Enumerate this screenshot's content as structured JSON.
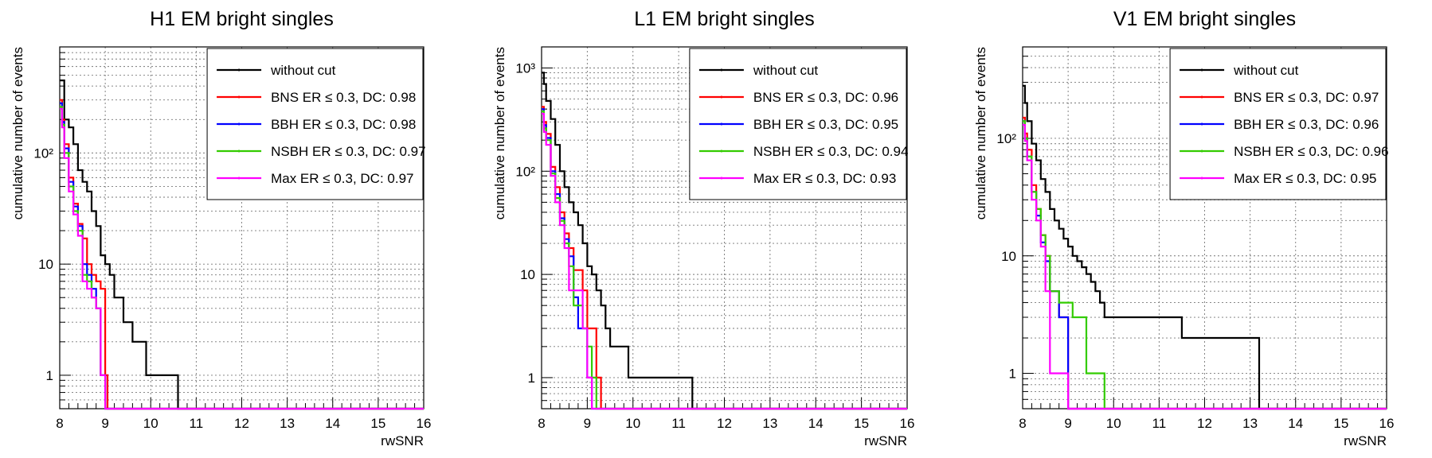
{
  "chart_data": [
    {
      "type": "line",
      "title": "H1 EM bright singles",
      "xlabel": "rwSNR",
      "ylabel": "cumulative number of events",
      "xlim": [
        8,
        16
      ],
      "ylim": [
        0.5,
        900
      ],
      "log_y": true,
      "grid": true,
      "legend_placement": "top-right",
      "x_ticks": [
        "8",
        "9",
        "10",
        "11",
        "12",
        "13",
        "14",
        "15",
        "16"
      ],
      "y_ticks": [
        {
          "value": 1,
          "label": "1"
        },
        {
          "value": 10,
          "label": "10"
        },
        {
          "value": 100,
          "label": "10²"
        }
      ],
      "series": [
        {
          "name": "without cut",
          "color": "#000000",
          "x": [
            8.0,
            8.1,
            8.2,
            8.3,
            8.4,
            8.5,
            8.6,
            8.7,
            8.8,
            8.9,
            9.0,
            9.1,
            9.2,
            9.4,
            9.6,
            9.9,
            10.6
          ],
          "y": [
            450,
            200,
            170,
            120,
            70,
            55,
            45,
            30,
            22,
            12,
            10,
            8,
            5,
            3,
            2,
            1,
            0.5
          ]
        },
        {
          "name": "BNS ER ≤ 0.3, DC: 0.98",
          "color": "#ff0000",
          "x": [
            8.0,
            8.05,
            8.1,
            8.2,
            8.3,
            8.4,
            8.5,
            8.6,
            8.7,
            8.8,
            8.9,
            9.0,
            9.05
          ],
          "y": [
            300,
            200,
            120,
            60,
            35,
            23,
            17,
            10,
            8,
            7,
            6,
            1,
            0.5
          ]
        },
        {
          "name": "BBH ER ≤ 0.3, DC: 0.98",
          "color": "#0000ff",
          "x": [
            8.0,
            8.05,
            8.1,
            8.2,
            8.3,
            8.4,
            8.5,
            8.6,
            8.7,
            8.8,
            8.9,
            9.0
          ],
          "y": [
            280,
            190,
            110,
            55,
            33,
            22,
            10,
            8,
            6,
            4,
            1,
            0.5
          ]
        },
        {
          "name": "NSBH ER ≤ 0.3, DC: 0.97",
          "color": "#33cc00",
          "x": [
            8.0,
            8.05,
            8.1,
            8.2,
            8.3,
            8.4,
            8.5,
            8.6,
            8.7,
            8.8,
            8.9,
            9.0
          ],
          "y": [
            260,
            180,
            100,
            50,
            30,
            20,
            8,
            7,
            5,
            4,
            1,
            0.5
          ]
        },
        {
          "name": "Max ER ≤ 0.3, DC: 0.97",
          "color": "#ff00ff",
          "x": [
            8.0,
            8.05,
            8.1,
            8.2,
            8.3,
            8.4,
            8.5,
            8.6,
            8.7,
            8.8,
            8.9,
            9.0
          ],
          "y": [
            250,
            170,
            90,
            45,
            28,
            18,
            7,
            6,
            5,
            4,
            1,
            0.5
          ]
        }
      ]
    },
    {
      "type": "line",
      "title": "L1 EM bright singles",
      "xlabel": "rwSNR",
      "ylabel": "cumulative number of events",
      "xlim": [
        8,
        16
      ],
      "ylim": [
        0.5,
        1600
      ],
      "log_y": true,
      "grid": true,
      "legend_placement": "top-right",
      "x_ticks": [
        "8",
        "9",
        "10",
        "11",
        "12",
        "13",
        "14",
        "15",
        "16"
      ],
      "y_ticks": [
        {
          "value": 1,
          "label": "1"
        },
        {
          "value": 10,
          "label": "10"
        },
        {
          "value": 100,
          "label": "10²"
        },
        {
          "value": 1000,
          "label": "10³"
        }
      ],
      "series": [
        {
          "name": "without cut",
          "color": "#000000",
          "x": [
            8.0,
            8.05,
            8.1,
            8.2,
            8.3,
            8.4,
            8.5,
            8.6,
            8.7,
            8.8,
            8.9,
            9.0,
            9.1,
            9.2,
            9.3,
            9.4,
            9.5,
            9.9,
            11.3
          ],
          "y": [
            900,
            700,
            480,
            320,
            180,
            100,
            70,
            50,
            40,
            30,
            20,
            12,
            10,
            7,
            5,
            3,
            2,
            1,
            0.5
          ]
        },
        {
          "name": "BNS ER ≤ 0.3, DC: 0.96",
          "color": "#ff0000",
          "x": [
            8.0,
            8.05,
            8.1,
            8.2,
            8.3,
            8.4,
            8.5,
            8.6,
            8.7,
            8.9,
            9.0,
            9.2,
            9.3
          ],
          "y": [
            420,
            300,
            230,
            110,
            70,
            40,
            25,
            18,
            11,
            7,
            3,
            1,
            0.5
          ]
        },
        {
          "name": "BBH ER ≤ 0.3, DC: 0.95",
          "color": "#0000ff",
          "x": [
            8.0,
            8.05,
            8.1,
            8.2,
            8.3,
            8.4,
            8.5,
            8.6,
            8.7,
            8.8,
            9.0,
            9.1
          ],
          "y": [
            400,
            280,
            210,
            100,
            60,
            35,
            22,
            15,
            6,
            3,
            1,
            0.5
          ]
        },
        {
          "name": "NSBH ER ≤ 0.3, DC: 0.94",
          "color": "#33cc00",
          "x": [
            8.0,
            8.05,
            8.1,
            8.2,
            8.3,
            8.4,
            8.5,
            8.6,
            8.7,
            8.9,
            9.0,
            9.1,
            9.2
          ],
          "y": [
            380,
            260,
            200,
            95,
            55,
            33,
            20,
            12,
            5,
            3,
            2,
            1,
            0.5
          ]
        },
        {
          "name": "Max ER ≤ 0.3, DC: 0.93",
          "color": "#ff00ff",
          "x": [
            8.0,
            8.05,
            8.1,
            8.2,
            8.3,
            8.4,
            8.5,
            8.6,
            8.9,
            9.0,
            9.1
          ],
          "y": [
            360,
            240,
            180,
            90,
            50,
            30,
            18,
            7,
            3,
            1,
            0.5
          ]
        }
      ]
    },
    {
      "type": "line",
      "title": "V1 EM bright singles",
      "xlabel": "rwSNR",
      "ylabel": "cumulative number of events",
      "xlim": [
        8,
        16
      ],
      "ylim": [
        0.5,
        600
      ],
      "log_y": true,
      "grid": true,
      "legend_placement": "top-right",
      "x_ticks": [
        "8",
        "9",
        "10",
        "11",
        "12",
        "13",
        "14",
        "15",
        "16"
      ],
      "y_ticks": [
        {
          "value": 1,
          "label": "1"
        },
        {
          "value": 10,
          "label": "10"
        },
        {
          "value": 100,
          "label": "10²"
        }
      ],
      "series": [
        {
          "name": "without cut",
          "color": "#000000",
          "x": [
            8.0,
            8.05,
            8.1,
            8.2,
            8.3,
            8.4,
            8.5,
            8.6,
            8.7,
            8.8,
            8.9,
            9.0,
            9.1,
            9.2,
            9.3,
            9.4,
            9.5,
            9.6,
            9.7,
            9.8,
            10.0,
            11.5,
            13.2
          ],
          "y": [
            280,
            200,
            140,
            90,
            65,
            45,
            35,
            25,
            20,
            17,
            14,
            12,
            10,
            9,
            8,
            7,
            6,
            5,
            4,
            3,
            3,
            2,
            0.5
          ]
        },
        {
          "name": "BNS ER ≤ 0.3, DC: 0.97",
          "color": "#ff0000",
          "x": [
            8.0,
            8.05,
            8.1,
            8.2,
            8.3,
            8.4,
            8.5,
            8.6,
            8.8,
            9.0
          ],
          "y": [
            150,
            110,
            80,
            40,
            25,
            15,
            10,
            5,
            3,
            0.5
          ]
        },
        {
          "name": "BBH ER ≤ 0.3, DC: 0.96",
          "color": "#0000ff",
          "x": [
            8.0,
            8.05,
            8.1,
            8.2,
            8.3,
            8.4,
            8.5,
            8.6,
            8.8,
            9.0
          ],
          "y": [
            140,
            100,
            70,
            35,
            22,
            13,
            9,
            5,
            3,
            0.5
          ]
        },
        {
          "name": "NSBH ER ≤ 0.3, DC: 0.96",
          "color": "#33cc00",
          "x": [
            8.0,
            8.05,
            8.1,
            8.2,
            8.3,
            8.4,
            8.5,
            8.6,
            8.8,
            9.1,
            9.4,
            9.8
          ],
          "y": [
            140,
            100,
            70,
            35,
            25,
            15,
            10,
            5,
            4,
            3,
            1,
            0.5
          ]
        },
        {
          "name": "Max ER ≤ 0.3, DC: 0.95",
          "color": "#ff00ff",
          "x": [
            8.0,
            8.05,
            8.1,
            8.2,
            8.3,
            8.4,
            8.5,
            8.6,
            9.0
          ],
          "y": [
            130,
            95,
            65,
            30,
            20,
            12,
            5,
            1,
            0.5
          ]
        }
      ]
    }
  ]
}
